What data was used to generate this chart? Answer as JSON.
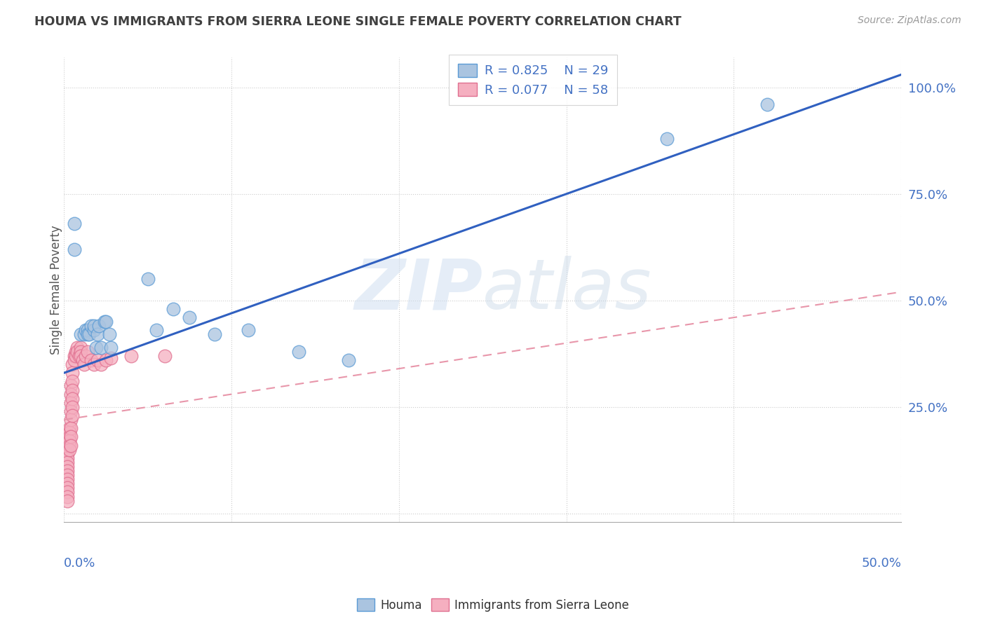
{
  "title": "HOUMA VS IMMIGRANTS FROM SIERRA LEONE SINGLE FEMALE POVERTY CORRELATION CHART",
  "source": "Source: ZipAtlas.com",
  "ylabel": "Single Female Poverty",
  "watermark": "ZIPatlas",
  "xlim": [
    0.0,
    0.5
  ],
  "ylim": [
    -0.02,
    1.07
  ],
  "legend_r1": "R = 0.825",
  "legend_n1": "N = 29",
  "legend_r2": "R = 0.077",
  "legend_n2": "N = 58",
  "houma_color": "#aac4e0",
  "sierra_color": "#f5afc0",
  "houma_edge": "#5b9bd5",
  "sierra_edge": "#e07090",
  "line1_color": "#3060c0",
  "line2_color": "#e896aa",
  "background_color": "#ffffff",
  "title_color": "#404040",
  "axis_color": "#4472c4",
  "houma_x": [
    0.006,
    0.006,
    0.01,
    0.012,
    0.013,
    0.014,
    0.014,
    0.015,
    0.016,
    0.018,
    0.018,
    0.019,
    0.02,
    0.021,
    0.022,
    0.024,
    0.025,
    0.027,
    0.028,
    0.05,
    0.055,
    0.065,
    0.075,
    0.09,
    0.11,
    0.14,
    0.17,
    0.36,
    0.42
  ],
  "houma_y": [
    0.68,
    0.62,
    0.42,
    0.42,
    0.43,
    0.43,
    0.42,
    0.42,
    0.44,
    0.43,
    0.44,
    0.39,
    0.42,
    0.44,
    0.39,
    0.45,
    0.45,
    0.42,
    0.39,
    0.55,
    0.43,
    0.48,
    0.46,
    0.42,
    0.43,
    0.38,
    0.36,
    0.88,
    0.96
  ],
  "sierra_x": [
    0.002,
    0.002,
    0.002,
    0.002,
    0.002,
    0.002,
    0.002,
    0.002,
    0.002,
    0.002,
    0.002,
    0.002,
    0.002,
    0.002,
    0.002,
    0.003,
    0.003,
    0.003,
    0.003,
    0.003,
    0.003,
    0.004,
    0.004,
    0.004,
    0.004,
    0.004,
    0.004,
    0.004,
    0.004,
    0.005,
    0.005,
    0.005,
    0.005,
    0.005,
    0.005,
    0.005,
    0.006,
    0.006,
    0.007,
    0.007,
    0.008,
    0.008,
    0.009,
    0.01,
    0.01,
    0.01,
    0.011,
    0.012,
    0.013,
    0.014,
    0.016,
    0.018,
    0.02,
    0.022,
    0.025,
    0.028,
    0.04,
    0.06
  ],
  "sierra_y": [
    0.175,
    0.16,
    0.15,
    0.14,
    0.13,
    0.12,
    0.11,
    0.1,
    0.09,
    0.08,
    0.07,
    0.06,
    0.05,
    0.04,
    0.03,
    0.2,
    0.19,
    0.18,
    0.17,
    0.16,
    0.15,
    0.3,
    0.28,
    0.26,
    0.24,
    0.22,
    0.2,
    0.18,
    0.16,
    0.35,
    0.33,
    0.31,
    0.29,
    0.27,
    0.25,
    0.23,
    0.37,
    0.36,
    0.38,
    0.37,
    0.39,
    0.38,
    0.37,
    0.39,
    0.38,
    0.37,
    0.36,
    0.35,
    0.37,
    0.38,
    0.36,
    0.35,
    0.36,
    0.35,
    0.36,
    0.365,
    0.37,
    0.37
  ],
  "houma_line_x": [
    0.0,
    0.5
  ],
  "houma_line_y": [
    0.33,
    1.03
  ],
  "sierra_line_x": [
    0.0,
    0.5
  ],
  "sierra_line_y": [
    0.22,
    0.52
  ]
}
